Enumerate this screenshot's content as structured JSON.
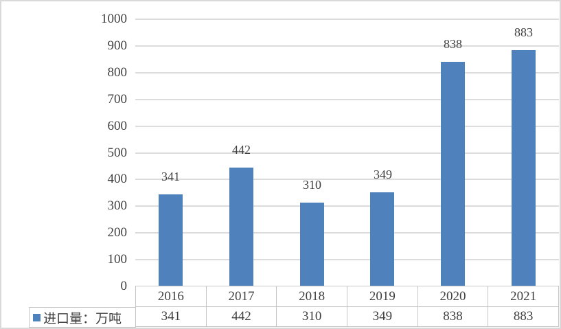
{
  "chart_data": {
    "type": "bar",
    "title": "",
    "xlabel": "",
    "ylabel": "",
    "categories": [
      "2016",
      "2017",
      "2018",
      "2019",
      "2020",
      "2021"
    ],
    "series": [
      {
        "name": "进口量：万吨",
        "values": [
          341,
          442,
          310,
          349,
          838,
          883
        ],
        "color": "#4f81bd"
      }
    ],
    "data_labels": [
      341,
      442,
      310,
      349,
      838,
      883
    ],
    "ylim": [
      0,
      1000
    ],
    "yticks": [
      0,
      100,
      200,
      300,
      400,
      500,
      600,
      700,
      800,
      900,
      1000
    ],
    "grid": true,
    "legend_position": "bottom-left-table",
    "data_table_shown": true
  },
  "legend": {
    "marker": "square-icon",
    "label": "进口量：万吨"
  },
  "colors": {
    "bar": "#4f81bd",
    "gridline": "#dcdcdc",
    "table_border": "#c6c6c6",
    "text": "#3f3f3f",
    "outer_border": "#d9d9d9",
    "background": "#ffffff"
  }
}
